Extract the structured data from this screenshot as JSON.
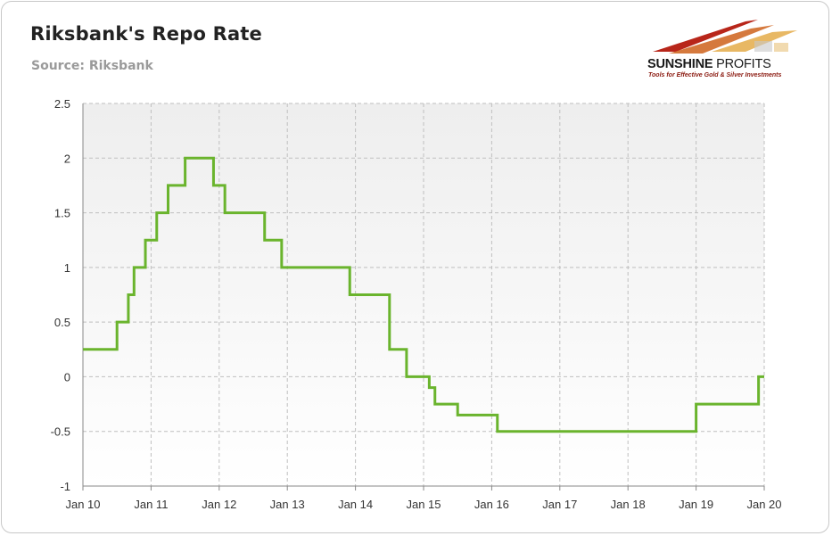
{
  "header": {
    "title": "Riksbank's Repo Rate",
    "subtitle": "Source: Riksbank"
  },
  "logo": {
    "brand_bold": "SUNSHINE",
    "brand_light": " PROFITS",
    "tagline": "Tools for Effective Gold & Silver Investments",
    "colors": {
      "red": "#b8261a",
      "gold": "#e0a030",
      "text": "#1a1a1a"
    }
  },
  "colors": {
    "line": "#6ab42d",
    "grid": "#bfbfbf",
    "axis": "#888888",
    "plot_bg_top": "#eeeeee",
    "plot_bg_bottom": "#ffffff"
  },
  "chart_data": {
    "type": "line",
    "step": true,
    "title": "Riksbank's Repo Rate",
    "subtitle": "Source: Riksbank",
    "xlabel": "",
    "ylabel": "",
    "xlim": [
      "2010-01",
      "2020-01"
    ],
    "ylim": [
      -1,
      2.5
    ],
    "grid": true,
    "legend": "none",
    "x_tick_labels": [
      "Jan 10",
      "Jan 11",
      "Jan 12",
      "Jan 13",
      "Jan 14",
      "Jan 15",
      "Jan 16",
      "Jan 17",
      "Jan 18",
      "Jan 19",
      "Jan 20"
    ],
    "y_tick_labels": [
      "2.5",
      "2",
      "1.5",
      "1",
      "0.5",
      "0",
      "-0.5",
      "-1"
    ],
    "y_ticks": [
      2.5,
      2,
      1.5,
      1,
      0.5,
      0,
      -0.5,
      -1
    ],
    "series": [
      {
        "x": [
          "2010-01",
          "2010-07",
          "2010-09",
          "2010-10",
          "2010-12",
          "2011-02",
          "2011-04",
          "2011-07",
          "2011-12",
          "2012-02",
          "2012-09",
          "2012-12",
          "2013-12",
          "2014-07",
          "2014-10",
          "2015-02",
          "2015-03",
          "2015-07",
          "2016-02",
          "2019-01",
          "2019-12",
          "2020-01"
        ],
        "values": [
          0.25,
          0.5,
          0.75,
          1,
          1.25,
          1.5,
          1.75,
          2,
          1.75,
          1.5,
          1.25,
          1,
          0.75,
          0.25,
          0,
          -0.1,
          -0.25,
          -0.35,
          -0.5,
          -0.25,
          0,
          0
        ]
      }
    ]
  }
}
